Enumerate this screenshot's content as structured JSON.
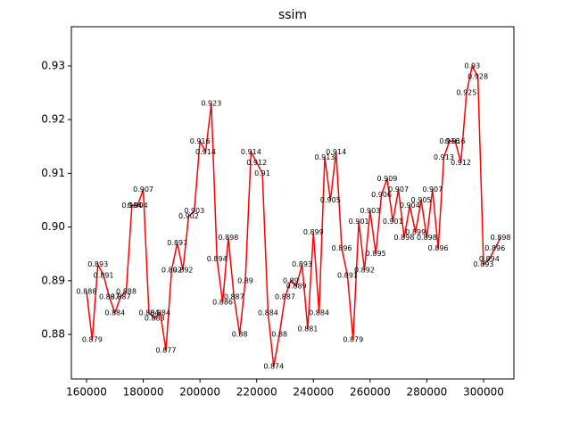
{
  "chart_data": {
    "type": "line",
    "title": "ssim",
    "x": [
      160000,
      162000,
      164000,
      166000,
      168000,
      170000,
      172000,
      174000,
      176000,
      178000,
      180000,
      182000,
      184000,
      186000,
      188000,
      190000,
      192000,
      194000,
      196000,
      198000,
      200000,
      202000,
      204000,
      206000,
      208000,
      210000,
      212000,
      214000,
      216000,
      218000,
      220000,
      222000,
      224000,
      226000,
      228000,
      230000,
      232000,
      234000,
      236000,
      238000,
      240000,
      242000,
      244000,
      246000,
      248000,
      250000,
      252000,
      254000,
      256000,
      258000,
      260000,
      262000,
      264000,
      266000,
      268000,
      270000,
      272000,
      274000,
      276000,
      278000,
      280000,
      282000,
      284000,
      286000,
      288000,
      290000,
      292000,
      294000,
      296000,
      298000,
      300000,
      302000,
      304000,
      306000
    ],
    "series": [
      {
        "name": "ssim",
        "color": "#ff0000",
        "values": [
          0.888,
          0.879,
          0.893,
          0.891,
          0.887,
          0.884,
          0.887,
          0.888,
          0.904,
          0.904,
          0.907,
          0.884,
          0.883,
          0.884,
          0.877,
          0.892,
          0.897,
          0.892,
          0.902,
          0.903,
          0.916,
          0.914,
          0.923,
          0.894,
          0.886,
          0.898,
          0.887,
          0.88,
          0.89,
          0.914,
          0.912,
          0.91,
          0.884,
          0.874,
          0.88,
          0.887,
          0.89,
          0.889,
          0.893,
          0.881,
          0.899,
          0.884,
          0.913,
          0.905,
          0.914,
          0.896,
          0.891,
          0.879,
          0.901,
          0.892,
          0.903,
          0.895,
          0.906,
          0.909,
          0.901,
          0.907,
          0.898,
          0.904,
          0.899,
          0.905,
          0.898,
          0.907,
          0.896,
          0.913,
          0.916,
          0.916,
          0.912,
          0.925,
          0.93,
          0.928,
          0.893,
          0.894,
          0.896,
          0.898
        ]
      }
    ],
    "xlim": [
      154650,
      310700
    ],
    "xticks": [
      160000,
      180000,
      200000,
      220000,
      240000,
      260000,
      280000,
      300000
    ],
    "ylim": [
      0.8717,
      0.9373
    ],
    "yticks": [
      {
        "value": 0.88,
        "label": "0.88"
      },
      {
        "value": 0.89,
        "label": "0.89"
      },
      {
        "value": 0.9,
        "label": "0.90"
      },
      {
        "value": 0.91,
        "label": "0.91"
      },
      {
        "value": 0.92,
        "label": "0.92"
      },
      {
        "value": 0.93,
        "label": "0.93"
      }
    ],
    "grid": false,
    "data_labels": true
  }
}
